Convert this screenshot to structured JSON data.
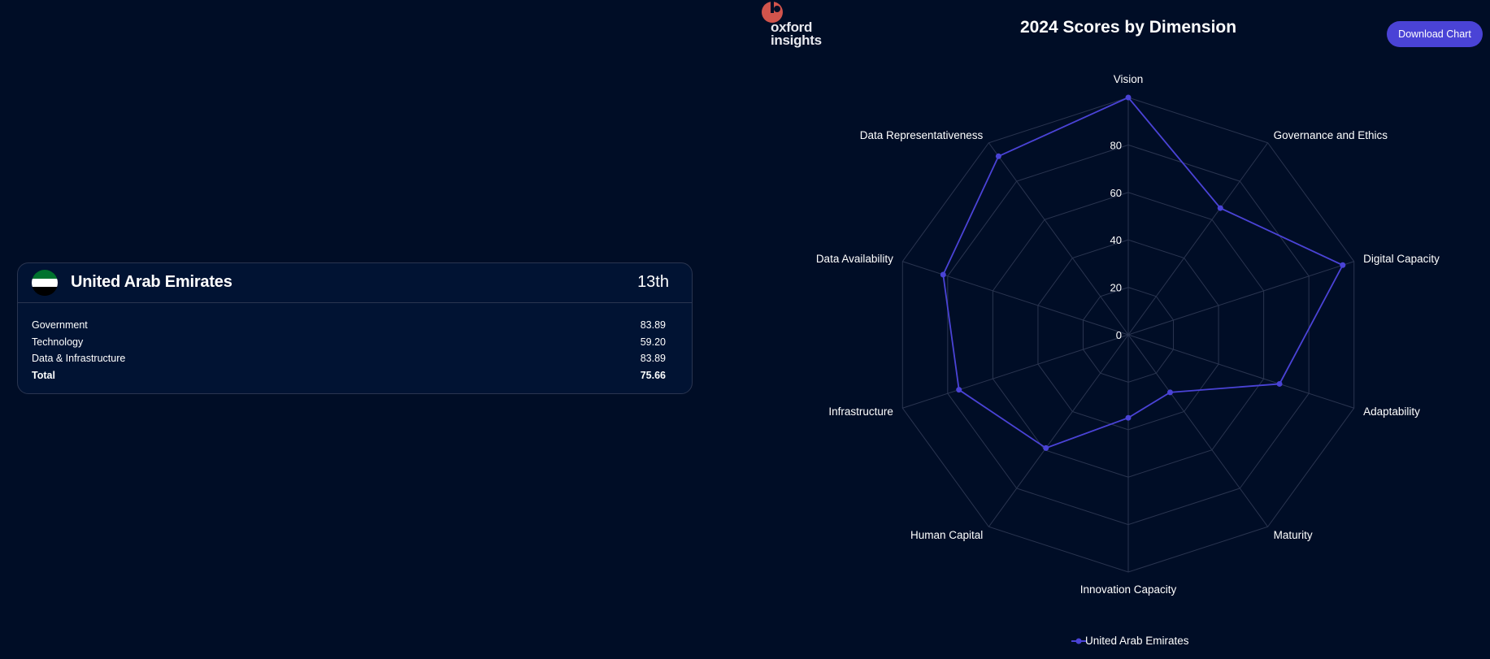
{
  "card": {
    "country": "United Arab Emirates",
    "rank": "13th",
    "rows": [
      {
        "label": "Government",
        "value": "83.89"
      },
      {
        "label": "Technology",
        "value": "59.20"
      },
      {
        "label": "Data & Infrastructure",
        "value": "83.89"
      },
      {
        "label": "Total",
        "value": "75.66"
      }
    ]
  },
  "logo": {
    "line1": "oxford",
    "line2": "insights"
  },
  "toolbar": {
    "download_label": "Download Chart"
  },
  "colors": {
    "background": "#000d26",
    "series": "#4a43d6",
    "grid": "#2a3550",
    "logo_accent": "#d2544c"
  },
  "chart_data": {
    "type": "radar",
    "title": "2024 Scores by Dimension",
    "categories": [
      "Vision",
      "Governance and Ethics",
      "Digital Capacity",
      "Adaptability",
      "Maturity",
      "Innovation Capacity",
      "Human Capital",
      "Infrastructure",
      "Data Availability",
      "Data Representativeness"
    ],
    "series": [
      {
        "name": "United Arab Emirates",
        "values": [
          100,
          66,
          95,
          67,
          30,
          35,
          59,
          75,
          82,
          93
        ]
      }
    ],
    "rlim": [
      0,
      100
    ],
    "ticks": [
      "0",
      "20",
      "40",
      "60",
      "80"
    ],
    "tick_values": [
      0,
      20,
      40,
      60,
      80
    ],
    "grid": true,
    "legend_position": "bottom"
  }
}
